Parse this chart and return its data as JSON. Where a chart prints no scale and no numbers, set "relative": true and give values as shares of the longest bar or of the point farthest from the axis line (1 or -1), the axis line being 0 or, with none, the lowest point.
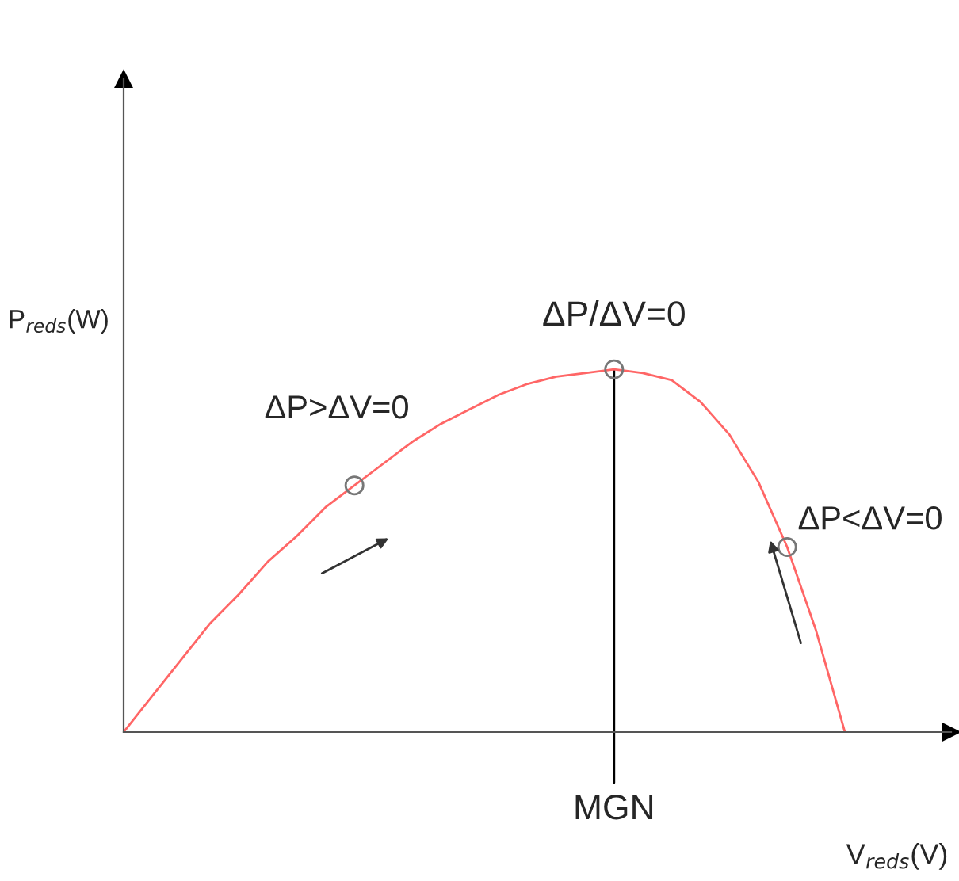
{
  "chart_data": {
    "type": "line",
    "relative": true,
    "xlabel": "V$_{reds}$(V)",
    "ylabel": "P$_{reds}$(W)",
    "categories": [
      null,
      null,
      null,
      null,
      null,
      null,
      null,
      null,
      null,
      null,
      null,
      null,
      null,
      null,
      null,
      null,
      null,
      null,
      null,
      null,
      null,
      null,
      null,
      null,
      null,
      null
    ],
    "series": [
      {
        "color": "#ff6666",
        "values": [
          0,
          0.1,
          0.2,
          0.3,
          0.38,
          0.47,
          0.54,
          0.62,
          0.68,
          0.74,
          0.8,
          0.85,
          0.89,
          0.93,
          0.96,
          0.98,
          0.99,
          1,
          0.99,
          0.97,
          0.91,
          0.82,
          0.69,
          0.51,
          0.28,
          0
        ]
      }
    ],
    "annotations": [
      "ΔP/ΔV=0",
      "ΔP>ΔV=0",
      "ΔP<ΔV=0",
      "MGN"
    ]
  }
}
